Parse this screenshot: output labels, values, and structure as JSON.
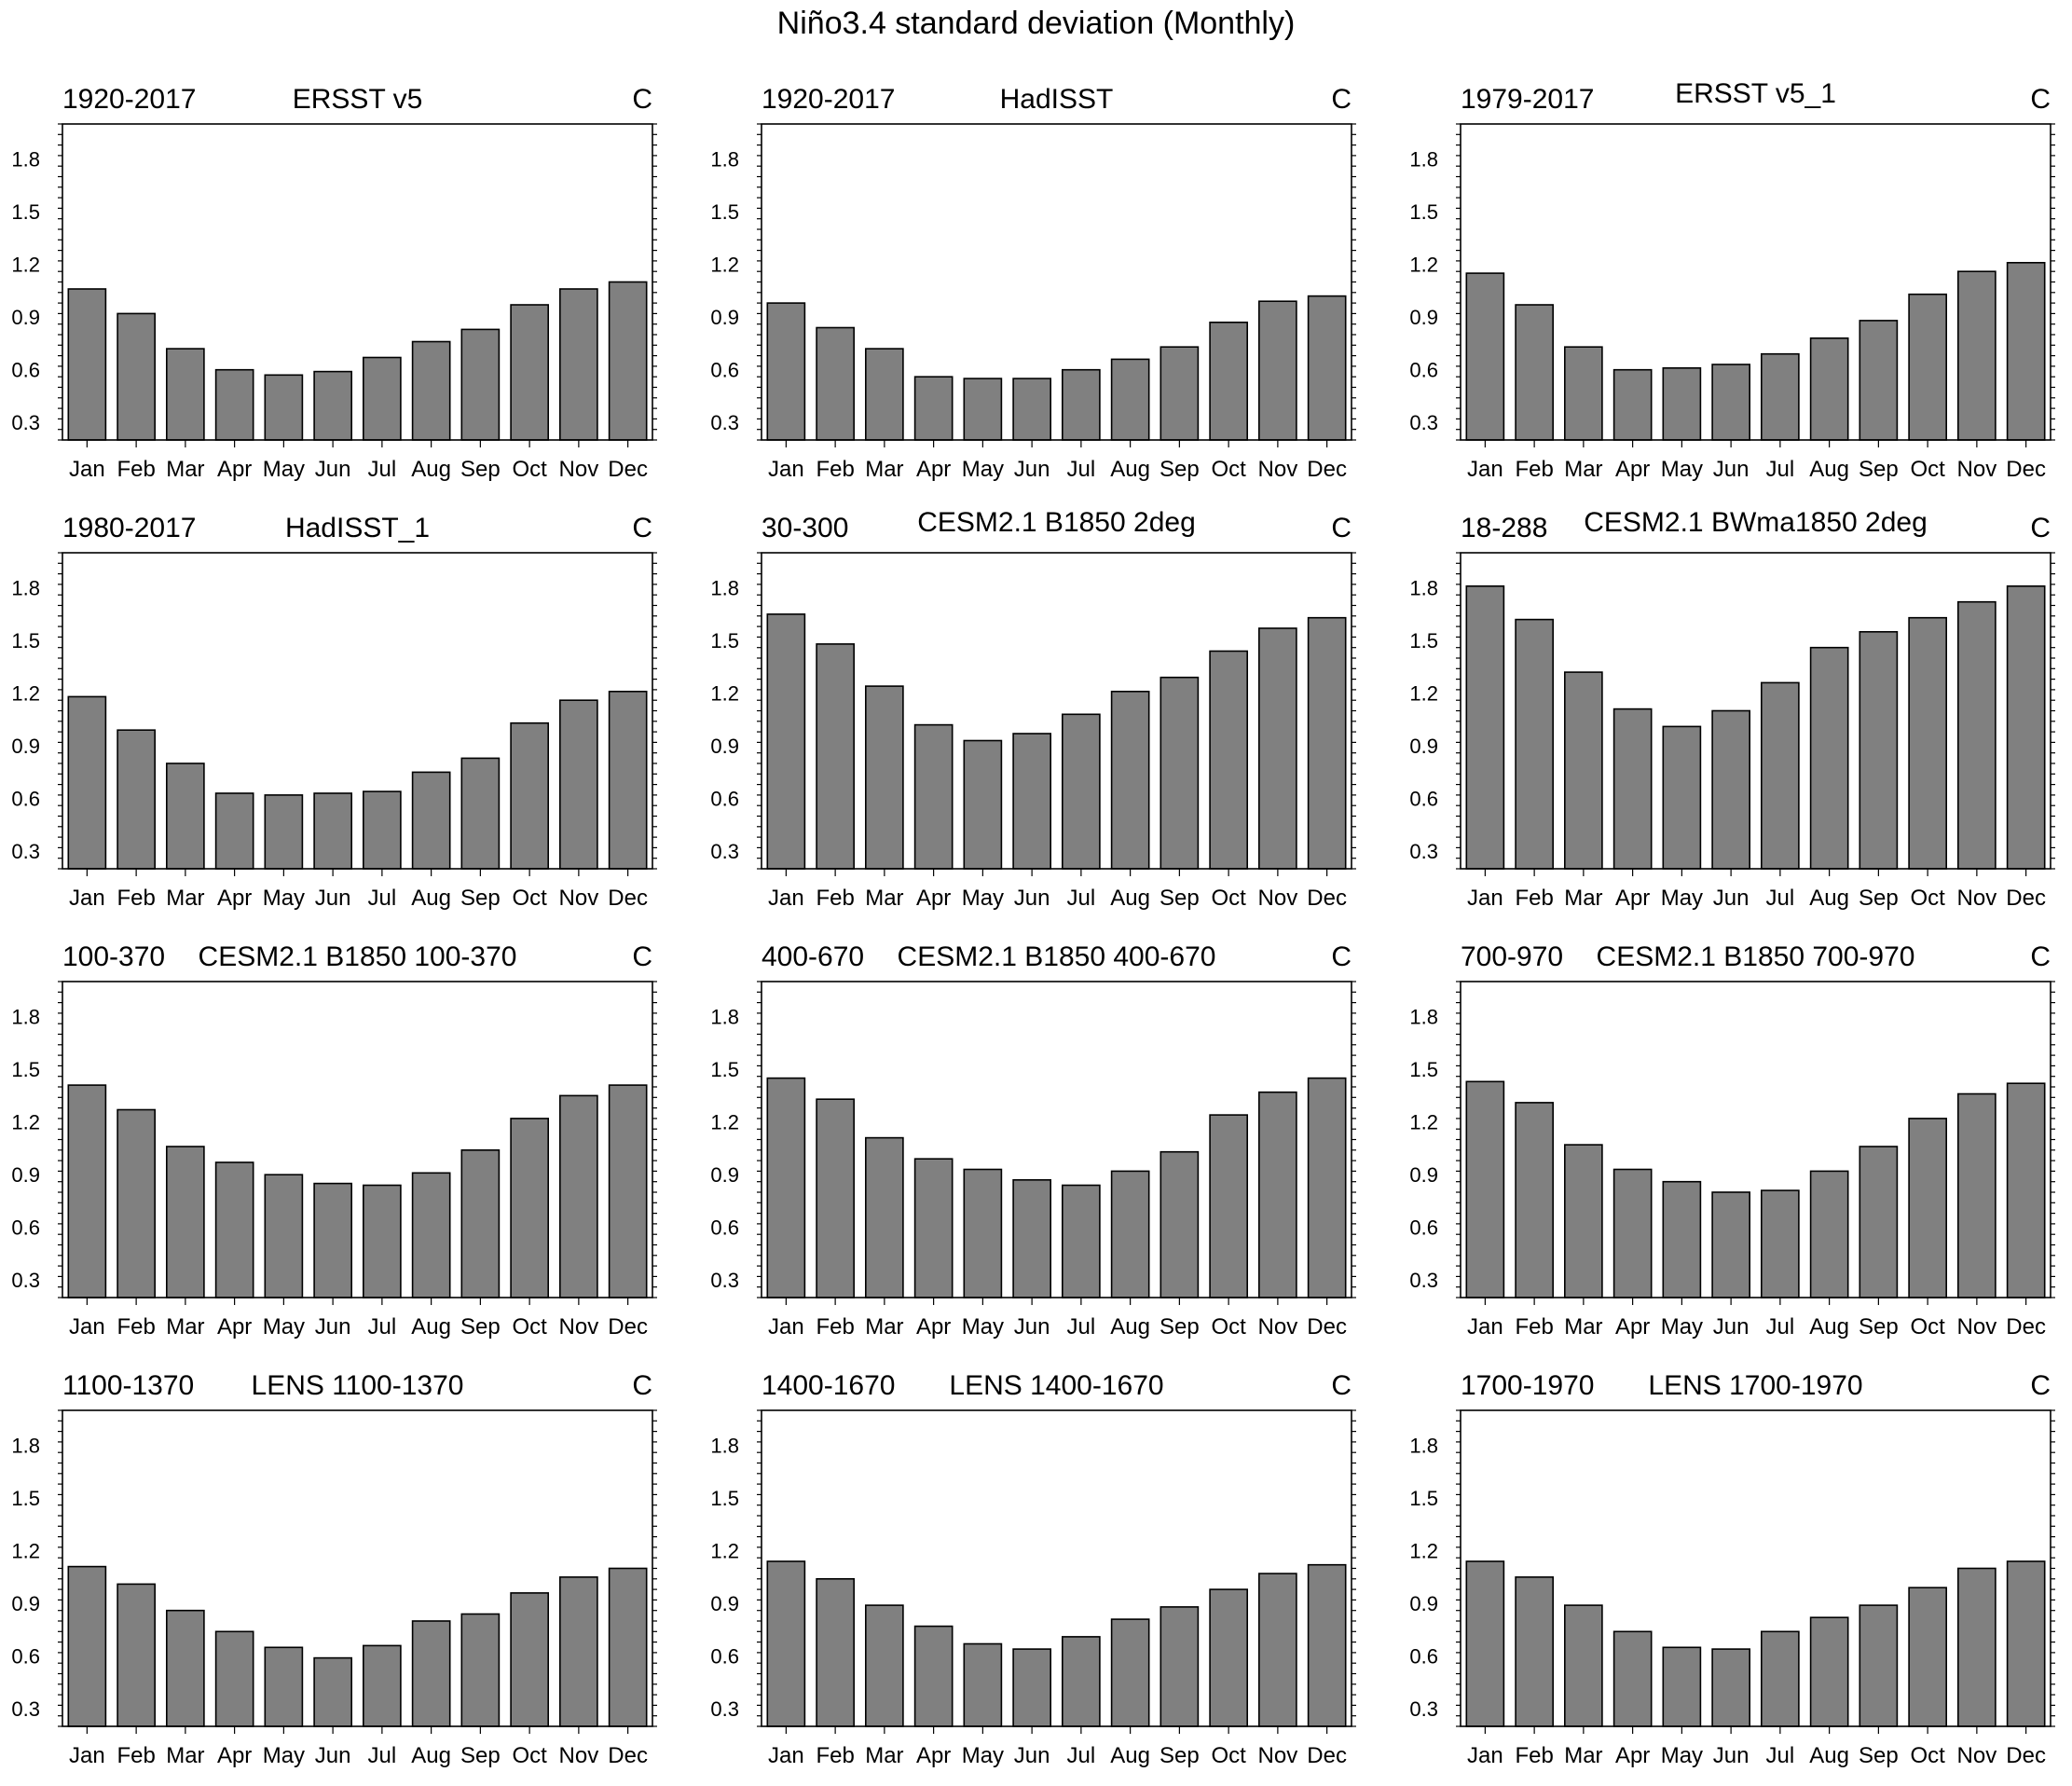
{
  "figure": {
    "title": "Niño3.4 standard deviation (Monthly)"
  },
  "colors": {
    "bar_fill": "#808080",
    "bar_stroke": "#000000",
    "axis": "#000000"
  },
  "chart_data": [
    {
      "type": "bar",
      "left_label": "1920-2017",
      "title": "ERSST v5",
      "right_label": "C",
      "categories": [
        "Jan",
        "Feb",
        "Mar",
        "Apr",
        "May",
        "Jun",
        "Jul",
        "Aug",
        "Sep",
        "Oct",
        "Nov",
        "Dec"
      ],
      "values": [
        1.06,
        0.92,
        0.72,
        0.6,
        0.57,
        0.59,
        0.67,
        0.76,
        0.83,
        0.97,
        1.06,
        1.1
      ],
      "ylim": [
        0.2,
        2.0
      ],
      "yticks": [
        "0.3",
        "0.6",
        "0.9",
        "1.2",
        "1.5",
        "1.8"
      ],
      "xlabel": "",
      "ylabel": ""
    },
    {
      "type": "bar",
      "left_label": "1920-2017",
      "title": "HadISST",
      "right_label": "C",
      "categories": [
        "Jan",
        "Feb",
        "Mar",
        "Apr",
        "May",
        "Jun",
        "Jul",
        "Aug",
        "Sep",
        "Oct",
        "Nov",
        "Dec"
      ],
      "values": [
        0.98,
        0.84,
        0.72,
        0.56,
        0.55,
        0.55,
        0.6,
        0.66,
        0.73,
        0.87,
        0.99,
        1.02
      ],
      "ylim": [
        0.2,
        2.0
      ],
      "yticks": [
        "0.3",
        "0.6",
        "0.9",
        "1.2",
        "1.5",
        "1.8"
      ],
      "xlabel": "",
      "ylabel": ""
    },
    {
      "type": "bar",
      "left_label": "1979-2017",
      "title": "ERSST v5_1",
      "right_label": "C",
      "categories": [
        "Jan",
        "Feb",
        "Mar",
        "Apr",
        "May",
        "Jun",
        "Jul",
        "Aug",
        "Sep",
        "Oct",
        "Nov",
        "Dec"
      ],
      "values": [
        1.15,
        0.97,
        0.73,
        0.6,
        0.61,
        0.63,
        0.69,
        0.78,
        0.88,
        1.03,
        1.16,
        1.21
      ],
      "ylim": [
        0.2,
        2.0
      ],
      "yticks": [
        "0.3",
        "0.6",
        "0.9",
        "1.2",
        "1.5",
        "1.8"
      ],
      "xlabel": "",
      "ylabel": ""
    },
    {
      "type": "bar",
      "left_label": "1980-2017",
      "title": "HadISST_1",
      "right_label": "C",
      "categories": [
        "Jan",
        "Feb",
        "Mar",
        "Apr",
        "May",
        "Jun",
        "Jul",
        "Aug",
        "Sep",
        "Oct",
        "Nov",
        "Dec"
      ],
      "values": [
        1.18,
        0.99,
        0.8,
        0.63,
        0.62,
        0.63,
        0.64,
        0.75,
        0.83,
        1.03,
        1.16,
        1.21
      ],
      "ylim": [
        0.2,
        2.0
      ],
      "yticks": [
        "0.3",
        "0.6",
        "0.9",
        "1.2",
        "1.5",
        "1.8"
      ],
      "xlabel": "",
      "ylabel": ""
    },
    {
      "type": "bar",
      "left_label": "30-300",
      "title": "CESM2.1 B1850 2deg",
      "right_label": "C",
      "categories": [
        "Jan",
        "Feb",
        "Mar",
        "Apr",
        "May",
        "Jun",
        "Jul",
        "Aug",
        "Sep",
        "Oct",
        "Nov",
        "Dec"
      ],
      "values": [
        1.65,
        1.48,
        1.24,
        1.02,
        0.93,
        0.97,
        1.08,
        1.21,
        1.29,
        1.44,
        1.57,
        1.63
      ],
      "ylim": [
        0.2,
        2.0
      ],
      "yticks": [
        "0.3",
        "0.6",
        "0.9",
        "1.2",
        "1.5",
        "1.8"
      ],
      "xlabel": "",
      "ylabel": ""
    },
    {
      "type": "bar",
      "left_label": "18-288",
      "title": "CESM2.1 BWma1850 2deg",
      "right_label": "C",
      "categories": [
        "Jan",
        "Feb",
        "Mar",
        "Apr",
        "May",
        "Jun",
        "Jul",
        "Aug",
        "Sep",
        "Oct",
        "Nov",
        "Dec"
      ],
      "values": [
        1.81,
        1.62,
        1.32,
        1.11,
        1.01,
        1.1,
        1.26,
        1.46,
        1.55,
        1.63,
        1.72,
        1.81
      ],
      "ylim": [
        0.2,
        2.0
      ],
      "yticks": [
        "0.3",
        "0.6",
        "0.9",
        "1.2",
        "1.5",
        "1.8"
      ],
      "xlabel": "",
      "ylabel": ""
    },
    {
      "type": "bar",
      "left_label": "100-370",
      "title": "CESM2.1 B1850 100-370",
      "right_label": "C",
      "categories": [
        "Jan",
        "Feb",
        "Mar",
        "Apr",
        "May",
        "Jun",
        "Jul",
        "Aug",
        "Sep",
        "Oct",
        "Nov",
        "Dec"
      ],
      "values": [
        1.41,
        1.27,
        1.06,
        0.97,
        0.9,
        0.85,
        0.84,
        0.91,
        1.04,
        1.22,
        1.35,
        1.41
      ],
      "ylim": [
        0.2,
        2.0
      ],
      "yticks": [
        "0.3",
        "0.6",
        "0.9",
        "1.2",
        "1.5",
        "1.8"
      ],
      "xlabel": "",
      "ylabel": ""
    },
    {
      "type": "bar",
      "left_label": "400-670",
      "title": "CESM2.1 B1850 400-670",
      "right_label": "C",
      "categories": [
        "Jan",
        "Feb",
        "Mar",
        "Apr",
        "May",
        "Jun",
        "Jul",
        "Aug",
        "Sep",
        "Oct",
        "Nov",
        "Dec"
      ],
      "values": [
        1.45,
        1.33,
        1.11,
        0.99,
        0.93,
        0.87,
        0.84,
        0.92,
        1.03,
        1.24,
        1.37,
        1.45
      ],
      "ylim": [
        0.2,
        2.0
      ],
      "yticks": [
        "0.3",
        "0.6",
        "0.9",
        "1.2",
        "1.5",
        "1.8"
      ],
      "xlabel": "",
      "ylabel": ""
    },
    {
      "type": "bar",
      "left_label": "700-970",
      "title": "CESM2.1 B1850 700-970",
      "right_label": "C",
      "categories": [
        "Jan",
        "Feb",
        "Mar",
        "Apr",
        "May",
        "Jun",
        "Jul",
        "Aug",
        "Sep",
        "Oct",
        "Nov",
        "Dec"
      ],
      "values": [
        1.43,
        1.31,
        1.07,
        0.93,
        0.86,
        0.8,
        0.81,
        0.92,
        1.06,
        1.22,
        1.36,
        1.42
      ],
      "ylim": [
        0.2,
        2.0
      ],
      "yticks": [
        "0.3",
        "0.6",
        "0.9",
        "1.2",
        "1.5",
        "1.8"
      ],
      "xlabel": "",
      "ylabel": ""
    },
    {
      "type": "bar",
      "left_label": "1100-1370",
      "title": "LENS 1100-1370",
      "right_label": "C",
      "categories": [
        "Jan",
        "Feb",
        "Mar",
        "Apr",
        "May",
        "Jun",
        "Jul",
        "Aug",
        "Sep",
        "Oct",
        "Nov",
        "Dec"
      ],
      "values": [
        1.11,
        1.01,
        0.86,
        0.74,
        0.65,
        0.59,
        0.66,
        0.8,
        0.84,
        0.96,
        1.05,
        1.1
      ],
      "ylim": [
        0.2,
        2.0
      ],
      "yticks": [
        "0.3",
        "0.6",
        "0.9",
        "1.2",
        "1.5",
        "1.8"
      ],
      "xlabel": "",
      "ylabel": ""
    },
    {
      "type": "bar",
      "left_label": "1400-1670",
      "title": "LENS 1400-1670",
      "right_label": "C",
      "categories": [
        "Jan",
        "Feb",
        "Mar",
        "Apr",
        "May",
        "Jun",
        "Jul",
        "Aug",
        "Sep",
        "Oct",
        "Nov",
        "Dec"
      ],
      "values": [
        1.14,
        1.04,
        0.89,
        0.77,
        0.67,
        0.64,
        0.71,
        0.81,
        0.88,
        0.98,
        1.07,
        1.12
      ],
      "ylim": [
        0.2,
        2.0
      ],
      "yticks": [
        "0.3",
        "0.6",
        "0.9",
        "1.2",
        "1.5",
        "1.8"
      ],
      "xlabel": "",
      "ylabel": ""
    },
    {
      "type": "bar",
      "left_label": "1700-1970",
      "title": "LENS 1700-1970",
      "right_label": "C",
      "categories": [
        "Jan",
        "Feb",
        "Mar",
        "Apr",
        "May",
        "Jun",
        "Jul",
        "Aug",
        "Sep",
        "Oct",
        "Nov",
        "Dec"
      ],
      "values": [
        1.14,
        1.05,
        0.89,
        0.74,
        0.65,
        0.64,
        0.74,
        0.82,
        0.89,
        0.99,
        1.1,
        1.14
      ],
      "ylim": [
        0.2,
        2.0
      ],
      "yticks": [
        "0.3",
        "0.6",
        "0.9",
        "1.2",
        "1.5",
        "1.8"
      ],
      "xlabel": "",
      "ylabel": ""
    }
  ]
}
